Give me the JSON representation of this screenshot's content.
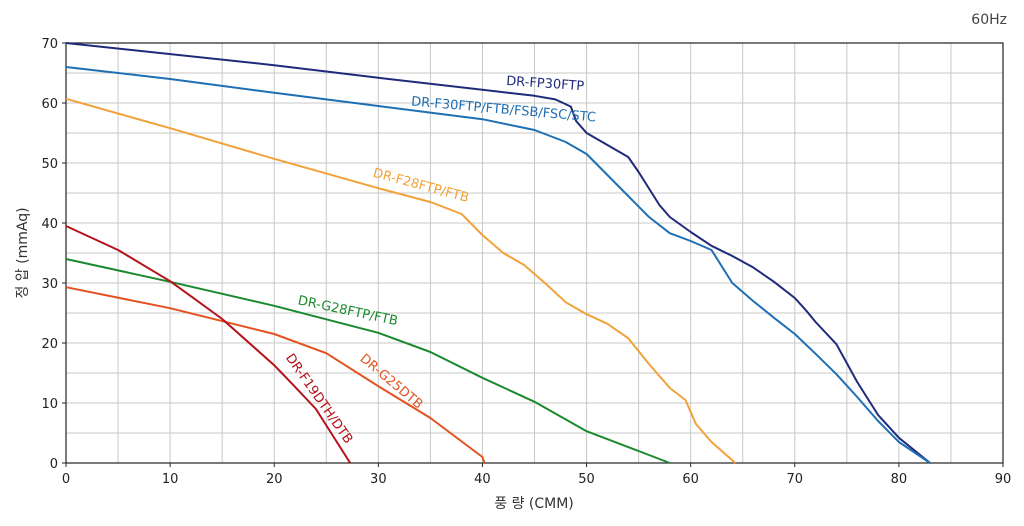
{
  "chart_data": {
    "type": "line",
    "frequency_label": "60Hz",
    "xlabel": "풍 량 (CMM)",
    "ylabel": "정 압 (mmAq)",
    "xlim": [
      0,
      90
    ],
    "ylim": [
      0,
      70
    ],
    "x_ticks": [
      0,
      10,
      20,
      30,
      40,
      50,
      60,
      70,
      80,
      90
    ],
    "y_ticks": [
      0,
      10,
      20,
      30,
      40,
      50,
      60,
      70
    ],
    "grid": true,
    "series": [
      {
        "name": "DR-FP30FTP",
        "color": "#1f2a7a",
        "points": [
          [
            0,
            70
          ],
          [
            20,
            66.3
          ],
          [
            30,
            64.2
          ],
          [
            40,
            62.2
          ],
          [
            45,
            61.2
          ],
          [
            47,
            60.6
          ],
          [
            48.5,
            59.4
          ],
          [
            49,
            57
          ],
          [
            50,
            55
          ],
          [
            52,
            53
          ],
          [
            54,
            51
          ],
          [
            55,
            48.5
          ],
          [
            57,
            43
          ],
          [
            58,
            41
          ],
          [
            60,
            38.5
          ],
          [
            62,
            36.2
          ],
          [
            64,
            34.5
          ],
          [
            66,
            32.6
          ],
          [
            68,
            30.2
          ],
          [
            70,
            27.5
          ],
          [
            71,
            25.6
          ],
          [
            72,
            23.5
          ],
          [
            74,
            19.8
          ],
          [
            76,
            13.5
          ],
          [
            78,
            8
          ],
          [
            80,
            4.2
          ],
          [
            83,
            0
          ]
        ]
      },
      {
        "name": "DR-F30FTP/FTB/FSB/FSC/STC",
        "color": "#1e6fb3",
        "points": [
          [
            0,
            66
          ],
          [
            10,
            64
          ],
          [
            20,
            61.7
          ],
          [
            30,
            59.5
          ],
          [
            40,
            57.3
          ],
          [
            45,
            55.5
          ],
          [
            48,
            53.5
          ],
          [
            50,
            51.5
          ],
          [
            52,
            48
          ],
          [
            54,
            44.5
          ],
          [
            56,
            41
          ],
          [
            58,
            38.3
          ],
          [
            60,
            37
          ],
          [
            62,
            35.5
          ],
          [
            64,
            30
          ],
          [
            66,
            27
          ],
          [
            68,
            24.2
          ],
          [
            70,
            21.5
          ],
          [
            72,
            18.2
          ],
          [
            74,
            14.8
          ],
          [
            76,
            11
          ],
          [
            78,
            7
          ],
          [
            80,
            3.5
          ],
          [
            83,
            0
          ]
        ]
      },
      {
        "name": "DR-F28FTP/FTB",
        "color": "#f2a23a",
        "points": [
          [
            0,
            60.7
          ],
          [
            10,
            55.8
          ],
          [
            20,
            50.7
          ],
          [
            30,
            45.8
          ],
          [
            35,
            43.5
          ],
          [
            38,
            41.5
          ],
          [
            40,
            38
          ],
          [
            42,
            35
          ],
          [
            44,
            33
          ],
          [
            46,
            30
          ],
          [
            48,
            26.8
          ],
          [
            50,
            24.8
          ],
          [
            52,
            23.2
          ],
          [
            54,
            20.8
          ],
          [
            56,
            16.5
          ],
          [
            58,
            12.5
          ],
          [
            59.5,
            10.5
          ],
          [
            60.5,
            6.5
          ],
          [
            62,
            3.5
          ],
          [
            64.3,
            0
          ]
        ]
      },
      {
        "name": "DR-G28FTP/FTB",
        "color": "#1b8a2e",
        "points": [
          [
            0,
            34
          ],
          [
            10,
            30.2
          ],
          [
            20,
            26.2
          ],
          [
            30,
            21.7
          ],
          [
            35,
            18.5
          ],
          [
            40,
            14.2
          ],
          [
            45,
            10.2
          ],
          [
            50,
            5.3
          ],
          [
            55,
            2
          ],
          [
            58,
            0
          ]
        ]
      },
      {
        "name": "DR-G25DTB",
        "color": "#e3521f",
        "points": [
          [
            0,
            29.3
          ],
          [
            10,
            25.8
          ],
          [
            20,
            21.5
          ],
          [
            25,
            18.3
          ],
          [
            30,
            12.8
          ],
          [
            35,
            7.5
          ],
          [
            40,
            1
          ],
          [
            40.2,
            0
          ]
        ]
      },
      {
        "name": "DR-F19DTH/DTB",
        "color": "#b5121b",
        "points": [
          [
            0,
            39.5
          ],
          [
            5,
            35.5
          ],
          [
            10,
            30.3
          ],
          [
            12,
            27.8
          ],
          [
            15,
            24
          ],
          [
            20,
            16.3
          ],
          [
            22,
            12.7
          ],
          [
            24,
            9
          ],
          [
            27.3,
            0
          ]
        ]
      }
    ]
  }
}
